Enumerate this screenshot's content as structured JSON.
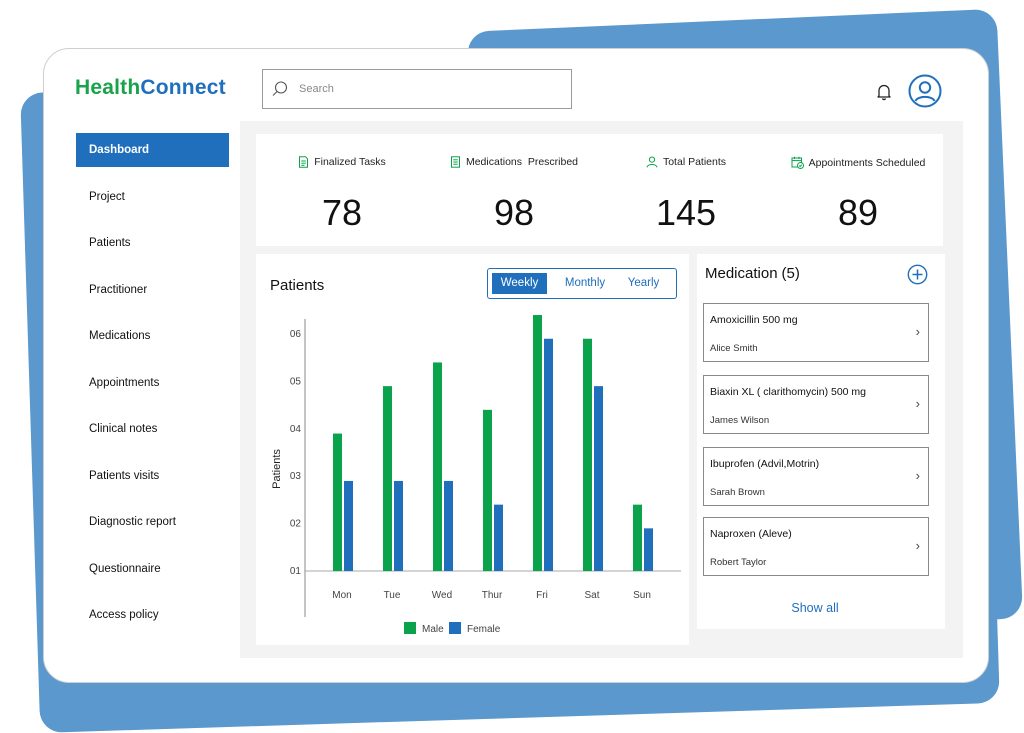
{
  "brand": {
    "part1": "Health",
    "part2": "Connect"
  },
  "search": {
    "placeholder": "Search"
  },
  "header": {
    "bell_icon": "bell-icon",
    "avatar_icon": "user-avatar-icon"
  },
  "sidebar": {
    "items": [
      {
        "label": "Dashboard",
        "active": true
      },
      {
        "label": "Project"
      },
      {
        "label": "Patients"
      },
      {
        "label": "Practitioner"
      },
      {
        "label": "Medications"
      },
      {
        "label": "Appointments"
      },
      {
        "label": "Clinical notes"
      },
      {
        "label": "Patients visits"
      },
      {
        "label": "Diagnostic report"
      },
      {
        "label": "Questionnaire"
      },
      {
        "label": "Access policy"
      }
    ]
  },
  "stats": [
    {
      "label": "Finalized Tasks",
      "value": "78",
      "icon": "document-list-icon"
    },
    {
      "label": "Medications  Prescribed",
      "value": "98",
      "icon": "prescription-icon"
    },
    {
      "label": "Total Patients",
      "value": "145",
      "icon": "person-icon"
    },
    {
      "label": "Appointments Scheduled",
      "value": "89",
      "icon": "calendar-check-icon"
    }
  ],
  "patients_chart": {
    "title": "Patients",
    "tabs": [
      "Weekly",
      "Monthly",
      "Yearly"
    ],
    "active_tab": "Weekly"
  },
  "chart_data": {
    "type": "bar",
    "categories": [
      "Mon",
      "Tue",
      "Wed",
      "Thur",
      "Fri",
      "Sat",
      "Sun"
    ],
    "series": [
      {
        "name": "Male",
        "color": "#0aa24b",
        "values": [
          3.9,
          4.9,
          5.4,
          4.4,
          6.4,
          5.9,
          2.4
        ]
      },
      {
        "name": "Female",
        "color": "#1f6fbd",
        "values": [
          2.9,
          2.9,
          2.9,
          2.4,
          5.9,
          4.9,
          1.9
        ]
      }
    ],
    "yticks": [
      "01",
      "02",
      "03",
      "04",
      "05",
      "06"
    ],
    "ytick_values": [
      1,
      2,
      3,
      4,
      5,
      6
    ],
    "ylabel": "Patients",
    "xlabel": "",
    "ylim": [
      1,
      6.6
    ],
    "grid": false,
    "legend": "bottom"
  },
  "medication": {
    "title": "Medication",
    "count": "(5)",
    "add_icon": "plus-circle-icon",
    "items": [
      {
        "name": "Amoxicillin 500 mg",
        "patient": "Alice Smith"
      },
      {
        "name": "Biaxin XL ( clarithomycin) 500 mg",
        "patient": "James Wilson"
      },
      {
        "name": "Ibuprofen (Advil,Motrin)",
        "patient": "Sarah Brown"
      },
      {
        "name": "Naproxen (Aleve)",
        "patient": "Robert Taylor"
      }
    ],
    "show_all": "Show all"
  }
}
